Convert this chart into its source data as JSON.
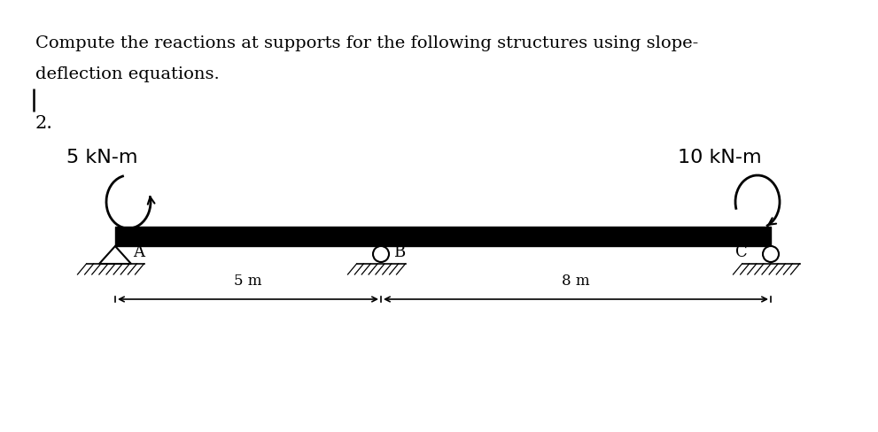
{
  "title_line1": "Compute the reactions at supports for the following structures using slope-",
  "title_line2": "deflection equations.",
  "problem_number": "2.",
  "moment_left_label": "5 kN-m",
  "moment_right_label": "10 kN-m",
  "label_A": "A",
  "label_B": "B",
  "label_C": "C",
  "dim_label_AB": "5 m",
  "dim_label_BC": "8 m",
  "beam_color": "#000000",
  "text_color": "#000000",
  "bg_color": "#ffffff",
  "title_fontsize": 14,
  "label_fontsize": 13,
  "moment_fontsize": 16,
  "number_fontsize": 15
}
